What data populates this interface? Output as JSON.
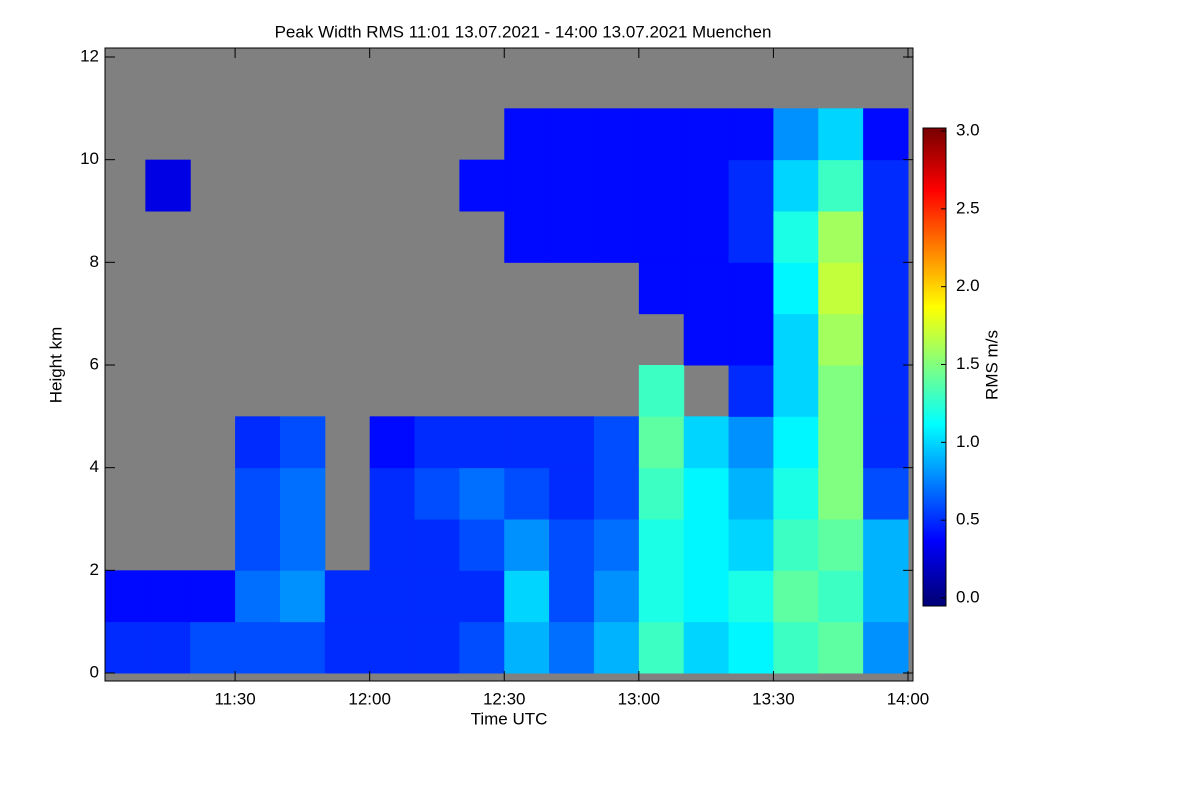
{
  "chart_data": {
    "type": "heatmap",
    "title": "Peak Width RMS   11:01 13.07.2021 - 14:00 13.07.2021 Muenchen",
    "x_label": "Time UTC",
    "y_label": "Height km",
    "colorbar_label": "RMS m/s",
    "xlim": [
      661,
      840
    ],
    "xticks": [
      {
        "value": 690,
        "label": "11:30"
      },
      {
        "value": 720,
        "label": "12:00"
      },
      {
        "value": 750,
        "label": "12:30"
      },
      {
        "value": 780,
        "label": "13:00"
      },
      {
        "value": 810,
        "label": "13:30"
      },
      {
        "value": 840,
        "label": "14:00"
      }
    ],
    "ylim": [
      0,
      12
    ],
    "yticks": [
      0,
      2,
      4,
      6,
      8,
      10,
      12
    ],
    "clim": [
      0,
      3
    ],
    "cticks": [
      {
        "value": 0,
        "label": "0.0"
      },
      0.5,
      {
        "value": 1,
        "label": "1.0"
      },
      1.5,
      {
        "value": 2,
        "label": "2.0"
      },
      2.5,
      {
        "value": 3,
        "label": "3.0"
      }
    ],
    "colormap": [
      "#00007f",
      "#0000ff",
      "#0080ff",
      "#00ffff",
      "#80ff80",
      "#ffff00",
      "#ff8000",
      "#ff0000",
      "#7f0000"
    ],
    "nodata_color": "#808080",
    "x_edges": [
      661,
      670,
      680,
      690,
      700,
      710,
      720,
      730,
      740,
      750,
      760,
      770,
      780,
      790,
      800,
      810,
      820,
      830,
      840
    ],
    "y_edges": [
      0,
      1,
      2,
      3,
      4,
      5,
      6,
      7,
      8,
      9,
      10,
      11,
      12
    ],
    "values": [
      [
        0.5,
        0.5,
        0.6,
        0.6,
        0.6,
        0.5,
        0.5,
        0.5,
        0.6,
        0.9,
        0.7,
        0.9,
        1.3,
        1.0,
        1.1,
        1.3,
        1.4,
        0.8
      ],
      [
        0.4,
        0.4,
        0.4,
        0.7,
        0.8,
        0.5,
        0.5,
        0.5,
        0.5,
        1.0,
        0.6,
        0.8,
        1.2,
        1.1,
        1.2,
        1.4,
        1.3,
        0.9
      ],
      [
        null,
        null,
        null,
        0.6,
        0.7,
        null,
        0.5,
        0.5,
        0.6,
        0.8,
        0.6,
        0.7,
        1.2,
        1.1,
        1.0,
        1.3,
        1.4,
        0.9
      ],
      [
        null,
        null,
        null,
        0.6,
        0.7,
        null,
        0.5,
        0.6,
        0.7,
        0.6,
        0.5,
        0.6,
        1.3,
        1.1,
        0.9,
        1.2,
        1.5,
        0.6
      ],
      [
        null,
        null,
        null,
        0.5,
        0.6,
        null,
        0.4,
        0.5,
        0.5,
        0.5,
        0.5,
        0.6,
        1.4,
        1.0,
        0.8,
        1.1,
        1.5,
        0.5
      ],
      [
        null,
        null,
        null,
        null,
        null,
        null,
        null,
        null,
        null,
        null,
        null,
        null,
        1.3,
        null,
        0.5,
        1.0,
        1.5,
        0.5
      ],
      [
        null,
        null,
        null,
        null,
        null,
        null,
        null,
        null,
        null,
        null,
        null,
        null,
        null,
        0.4,
        0.4,
        1.0,
        1.6,
        0.5
      ],
      [
        null,
        null,
        null,
        null,
        null,
        null,
        null,
        null,
        null,
        null,
        null,
        null,
        0.4,
        0.4,
        0.4,
        1.1,
        1.7,
        0.5
      ],
      [
        null,
        null,
        null,
        null,
        null,
        null,
        null,
        null,
        null,
        0.4,
        0.4,
        0.4,
        0.4,
        0.4,
        0.5,
        1.2,
        1.6,
        0.5
      ],
      [
        null,
        0.3,
        null,
        null,
        null,
        null,
        null,
        null,
        0.4,
        0.4,
        0.4,
        0.4,
        0.4,
        0.4,
        0.5,
        1.0,
        1.3,
        0.5
      ],
      [
        null,
        null,
        null,
        null,
        null,
        null,
        null,
        null,
        null,
        0.4,
        0.4,
        0.4,
        0.4,
        0.4,
        0.4,
        0.8,
        1.0,
        0.4
      ],
      [
        null,
        null,
        null,
        null,
        null,
        null,
        null,
        null,
        null,
        null,
        null,
        null,
        null,
        null,
        null,
        null,
        null,
        null
      ]
    ]
  }
}
